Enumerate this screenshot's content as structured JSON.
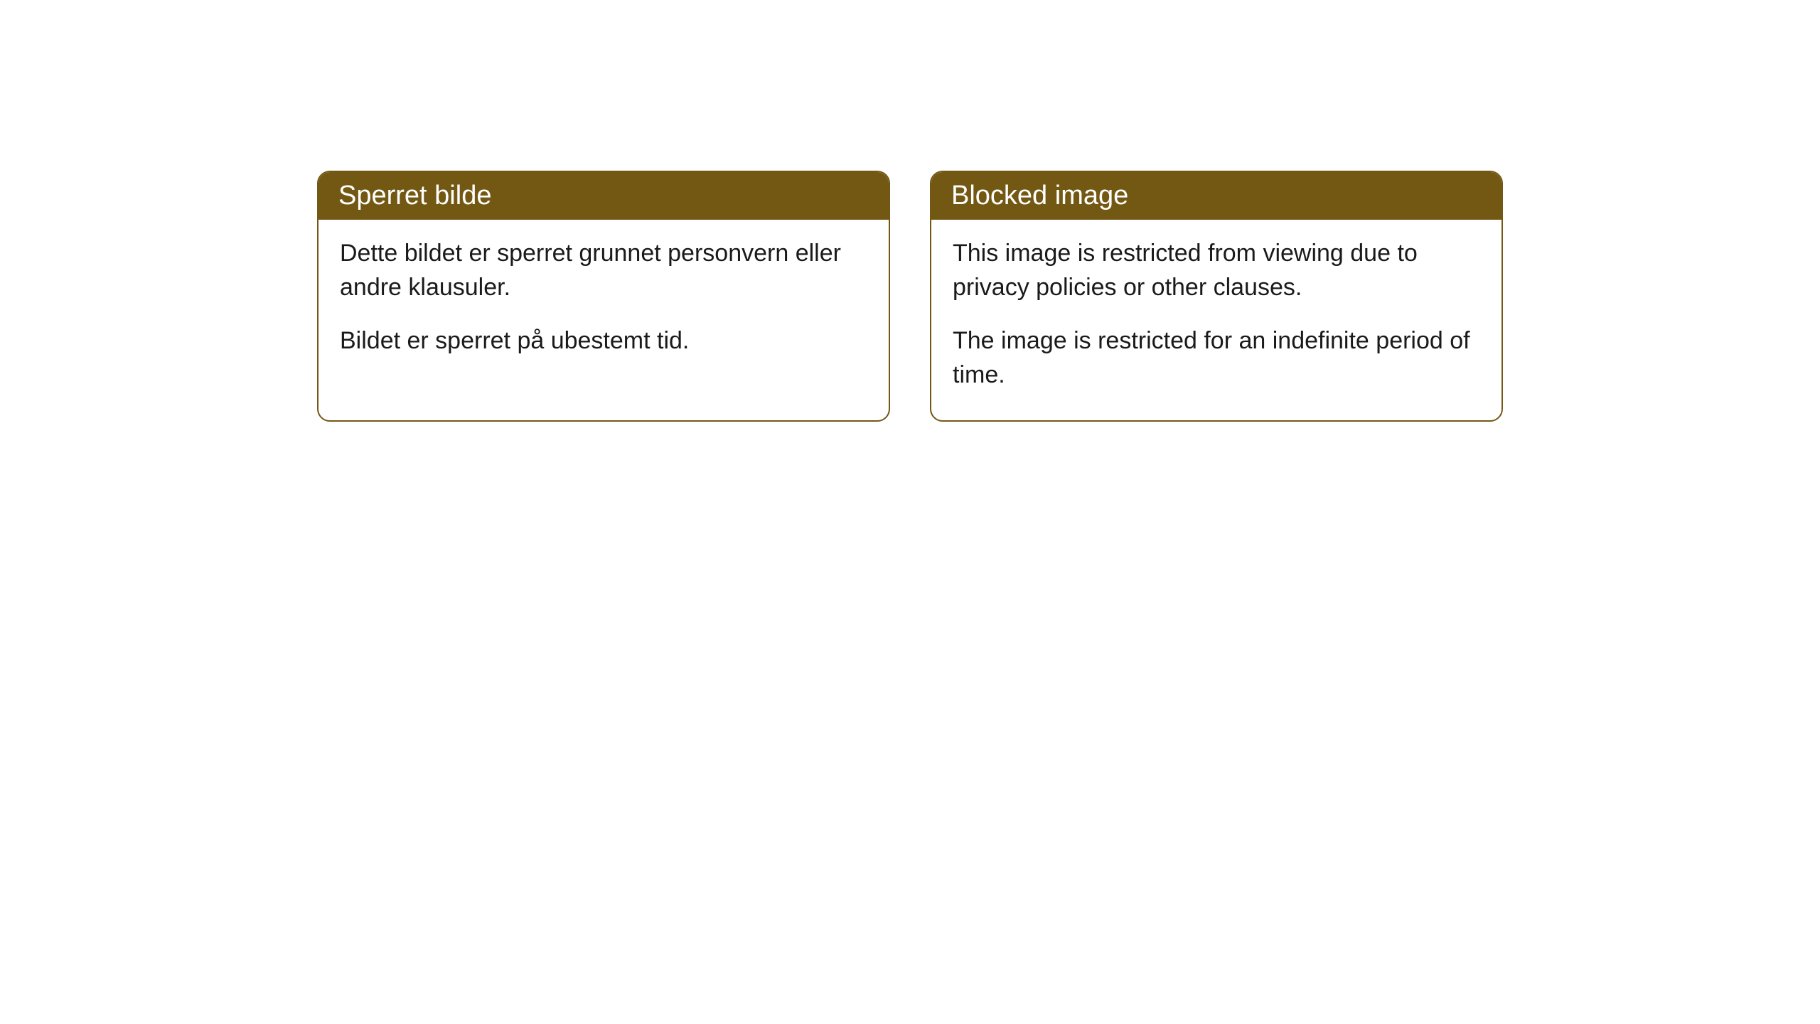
{
  "cards": [
    {
      "title": "Sperret bilde",
      "paragraph1": "Dette bildet er sperret grunnet personvern eller andre klausuler.",
      "paragraph2": "Bildet er sperret på ubestemt tid."
    },
    {
      "title": "Blocked image",
      "paragraph1": "This image is restricted from viewing due to privacy policies or other clauses.",
      "paragraph2": "The image is restricted for an indefinite period of time."
    }
  ],
  "style": {
    "card_border_color": "#735813",
    "card_header_bg": "#735813",
    "card_header_text_color": "#ffffff",
    "card_body_text_color": "#1a1a1a",
    "card_bg": "#ffffff",
    "page_bg": "#ffffff",
    "border_radius": 18,
    "header_fontsize": 38,
    "body_fontsize": 34
  }
}
